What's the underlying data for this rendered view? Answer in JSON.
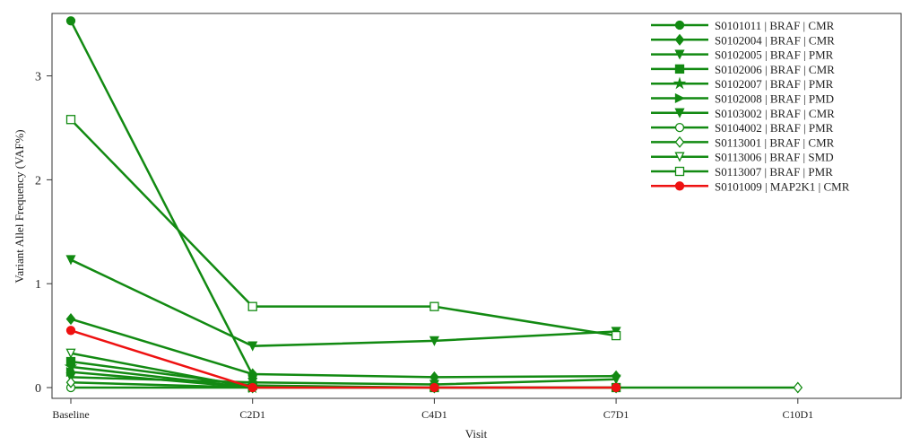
{
  "chart_data": {
    "type": "line",
    "xlabel": "Visit",
    "ylabel": "Variant Allel Frequency  (VAF%)",
    "categories": [
      "Baseline",
      "C2D1",
      "C4D1",
      "C7D1",
      "C10D1"
    ],
    "ylim": [
      0,
      3.6
    ],
    "yticks": [
      0,
      1,
      2,
      3
    ],
    "grid": false,
    "legend_position": "top-right",
    "series": [
      {
        "name": "S0101011 | BRAF | CMR",
        "color": "#128a12",
        "marker": "circle",
        "filled": true,
        "values": [
          3.53,
          0.12,
          null,
          null,
          null
        ]
      },
      {
        "name": "S0102004 | BRAF | CMR",
        "color": "#128a12",
        "marker": "diamond",
        "filled": true,
        "values": [
          0.66,
          0.13,
          0.1,
          0.11,
          null
        ]
      },
      {
        "name": "S0102005 | BRAF | PMR",
        "color": "#128a12",
        "marker": "triangle-down",
        "filled": true,
        "values": [
          1.23,
          0.4,
          0.45,
          0.54,
          null
        ]
      },
      {
        "name": "S0102006 | BRAF | CMR",
        "color": "#128a12",
        "marker": "square",
        "filled": true,
        "values": [
          0.25,
          0.02,
          0.0,
          0.0,
          null
        ]
      },
      {
        "name": "S0102007 | BRAF | PMR",
        "color": "#128a12",
        "marker": "star",
        "filled": true,
        "values": [
          0.2,
          0.0,
          null,
          null,
          null
        ]
      },
      {
        "name": "S0102008 | BRAF | PMD",
        "color": "#128a12",
        "marker": "triangle-right",
        "filled": true,
        "values": [
          0.15,
          0.0,
          null,
          null,
          null
        ]
      },
      {
        "name": "S0103002 | BRAF | CMR",
        "color": "#128a12",
        "marker": "triangle-down",
        "filled": true,
        "values": [
          0.1,
          0.05,
          0.03,
          0.08,
          null
        ]
      },
      {
        "name": "S0104002 | BRAF | PMR",
        "color": "#128a12",
        "marker": "circle",
        "filled": false,
        "values": [
          0.0,
          0.0,
          null,
          null,
          null
        ]
      },
      {
        "name": "S0113001 | BRAF | CMR",
        "color": "#128a12",
        "marker": "diamond",
        "filled": false,
        "values": [
          0.05,
          0.0,
          0.0,
          0.0,
          0.0
        ]
      },
      {
        "name": "S0113006 | BRAF | SMD",
        "color": "#128a12",
        "marker": "triangle-down",
        "filled": false,
        "values": [
          0.33,
          0.0,
          null,
          null,
          null
        ]
      },
      {
        "name": "S0113007 | BRAF | PMR",
        "color": "#128a12",
        "marker": "square",
        "filled": false,
        "values": [
          2.58,
          0.78,
          0.78,
          0.5,
          null
        ]
      },
      {
        "name": "S0101009 | MAP2K1 | CMR",
        "color": "#ee1111",
        "marker": "circle",
        "filled": true,
        "values": [
          0.55,
          0.0,
          0.0,
          0.0,
          null
        ]
      }
    ]
  }
}
